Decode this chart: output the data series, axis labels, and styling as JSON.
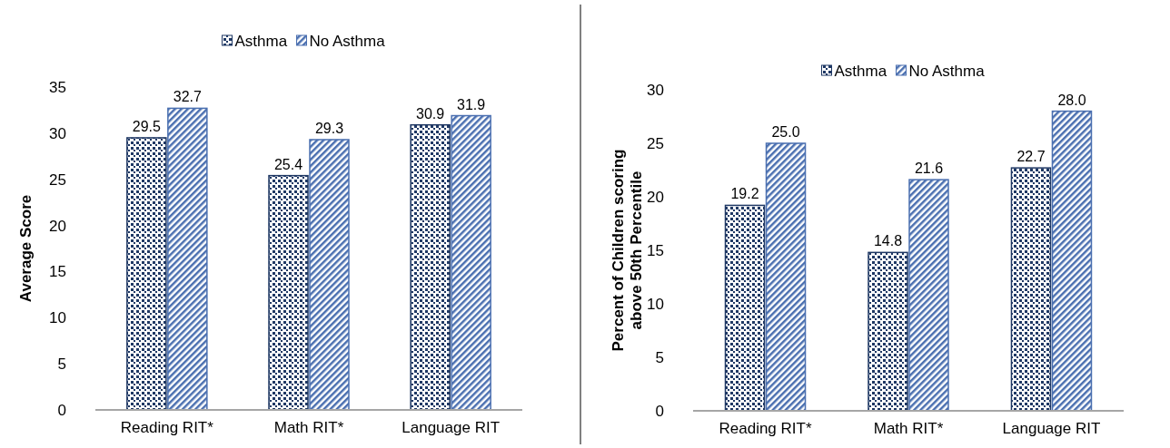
{
  "chart_data": [
    {
      "type": "bar",
      "ylabel": "Average Score",
      "categories": [
        "Reading RIT*",
        "Math RIT*",
        "Language RIT"
      ],
      "ylim": [
        0,
        35
      ],
      "yticks": [
        0,
        5,
        10,
        15,
        20,
        25,
        30,
        35
      ],
      "legend": "top",
      "grid": false,
      "series": [
        {
          "name": "Asthma",
          "color": "#1f3864",
          "values": [
            29.5,
            25.4,
            30.9
          ],
          "value_labels": [
            "29.5",
            "25.4",
            "30.9"
          ]
        },
        {
          "name": "No Asthma",
          "color": "#4a6fb0",
          "values": [
            32.7,
            29.3,
            31.9
          ],
          "value_labels": [
            "32.7",
            "29.3",
            "31.9"
          ]
        }
      ]
    },
    {
      "type": "bar",
      "ylabel": "Percent of Children scoring\nabove 50th Percentile",
      "categories": [
        "Reading RIT*",
        "Math RIT*",
        "Language RIT"
      ],
      "ylim": [
        0,
        30
      ],
      "yticks": [
        0,
        5,
        10,
        15,
        20,
        25,
        30
      ],
      "legend": "top",
      "grid": false,
      "series": [
        {
          "name": "Asthma",
          "color": "#1f3864",
          "values": [
            19.2,
            14.8,
            22.7
          ],
          "value_labels": [
            "19.2",
            "14.8",
            "22.7"
          ]
        },
        {
          "name": "No Asthma",
          "color": "#4a6fb0",
          "values": [
            25.0,
            21.6,
            28.0
          ],
          "value_labels": [
            "25.0",
            "21.6",
            "28.0"
          ]
        }
      ]
    }
  ]
}
